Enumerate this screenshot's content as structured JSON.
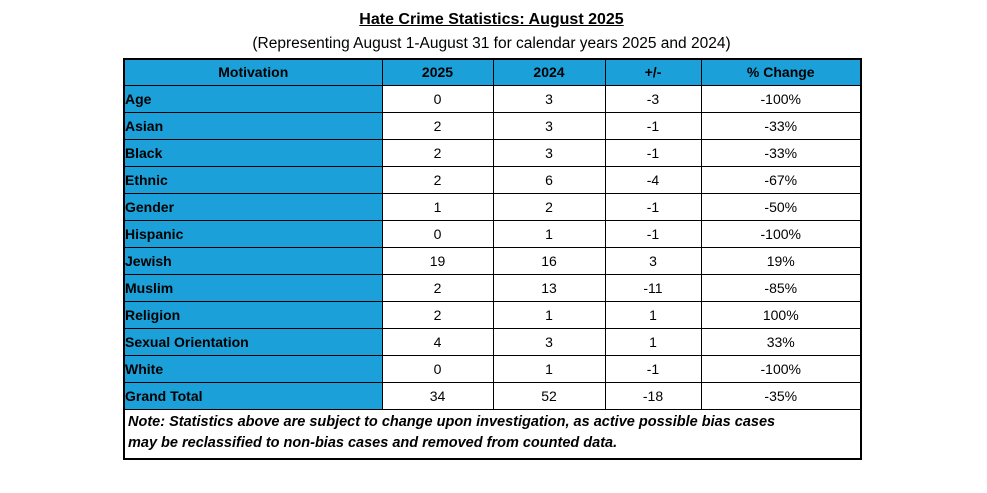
{
  "colors": {
    "header_bg": "#1BA0D9",
    "border": "#000000",
    "text": "#000000",
    "background": "#FFFFFF"
  },
  "chart_data": {
    "type": "table",
    "title": "Hate Crime Statistics: August 2025",
    "subtitle": "(Representing August 1-August 31 for calendar years 2025 and 2024)",
    "columns": [
      "Motivation",
      "2025",
      "2024",
      "+/-",
      "% Change"
    ],
    "rows": [
      [
        "Age",
        "0",
        "3",
        "-3",
        "-100%"
      ],
      [
        "Asian",
        "2",
        "3",
        "-1",
        "-33%"
      ],
      [
        "Black",
        "2",
        "3",
        "-1",
        "-33%"
      ],
      [
        "Ethnic",
        "2",
        "6",
        "-4",
        "-67%"
      ],
      [
        "Gender",
        "1",
        "2",
        "-1",
        "-50%"
      ],
      [
        "Hispanic",
        "0",
        "1",
        "-1",
        "-100%"
      ],
      [
        "Jewish",
        "19",
        "16",
        "3",
        "19%"
      ],
      [
        "Muslim",
        "2",
        "13",
        "-11",
        "-85%"
      ],
      [
        "Religion",
        "2",
        "1",
        "1",
        "100%"
      ],
      [
        "Sexual Orientation",
        "4",
        "3",
        "1",
        "33%"
      ],
      [
        "White",
        "0",
        "1",
        "-1",
        "-100%"
      ],
      [
        "Grand Total",
        "34",
        "52",
        "-18",
        "-35%"
      ]
    ],
    "note_lines": [
      "Note: Statistics above are subject to change upon investigation, as active possible bias cases",
      "may be reclassified to non-bias cases and removed from counted data."
    ]
  }
}
